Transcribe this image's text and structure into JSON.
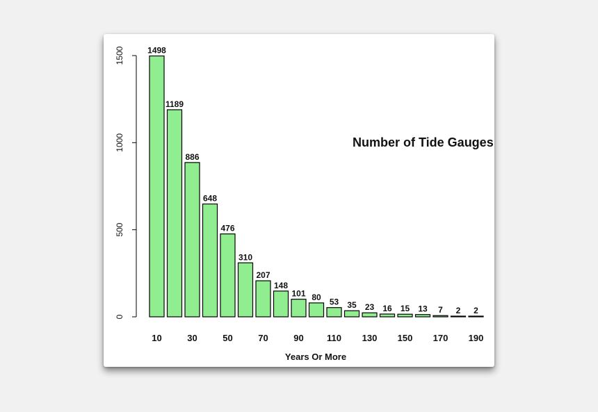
{
  "chart_data": {
    "type": "bar",
    "title": "Number of Tide Gauges by Length",
    "xlabel": "Years Or More",
    "ylabel": "",
    "ylim": [
      0,
      1500
    ],
    "yticks": [
      0,
      500,
      1000,
      1500
    ],
    "categories": [
      "10",
      "20",
      "30",
      "40",
      "50",
      "60",
      "70",
      "80",
      "90",
      "100",
      "110",
      "120",
      "130",
      "140",
      "150",
      "160",
      "170",
      "180",
      "190"
    ],
    "shown_xtick_labels": [
      "10",
      "30",
      "50",
      "70",
      "90",
      "110",
      "130",
      "150",
      "170",
      "190"
    ],
    "values": [
      1498,
      1189,
      886,
      648,
      476,
      310,
      207,
      148,
      101,
      80,
      53,
      35,
      23,
      16,
      15,
      13,
      7,
      2,
      2
    ],
    "bar_color": "#90ee90",
    "bar_edge_color": "#000000",
    "grid": false,
    "legend": "none"
  }
}
